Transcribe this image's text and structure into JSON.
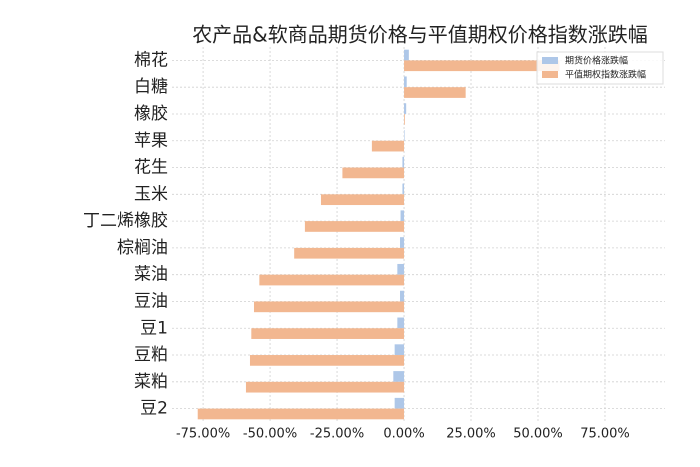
{
  "chart_data": {
    "type": "hbar",
    "title": "农产品&软商品期货价格与平值期权价格指数涨跌幅",
    "categories": [
      "棉花",
      "白糖",
      "橡胶",
      "苹果",
      "花生",
      "玉米",
      "丁二烯橡胶",
      "棕榈油",
      "菜油",
      "豆油",
      "豆1",
      "豆粕",
      "菜粕",
      "豆2"
    ],
    "series": [
      {
        "name": "期货价格涨跌幅",
        "color": "#aec7e8",
        "values": [
          1.8,
          1.0,
          0.8,
          0.2,
          -0.6,
          -0.6,
          -1.3,
          -1.5,
          -2.5,
          -1.5,
          -2.5,
          -3.5,
          -4.0,
          -3.5
        ]
      },
      {
        "name": "平值期权指数涨跌幅",
        "color": "#f2b790",
        "values": [
          58,
          23,
          0.3,
          -12,
          -23,
          -31,
          -37,
          -41,
          -54,
          -56,
          -57,
          -57.5,
          -59,
          -77
        ]
      }
    ],
    "xlim": [
      -86.6,
      97.4
    ],
    "xticks": [
      {
        "value": -75,
        "label": "-75.00%"
      },
      {
        "value": -50,
        "label": "-50.00%"
      },
      {
        "value": -25,
        "label": "-25.00%"
      },
      {
        "value": 0,
        "label": "0.00%"
      },
      {
        "value": 25,
        "label": "25.00%"
      },
      {
        "value": 50,
        "label": "50.00%"
      },
      {
        "value": 75,
        "label": "75.00%"
      }
    ],
    "grid": true,
    "legend": "upper right"
  }
}
